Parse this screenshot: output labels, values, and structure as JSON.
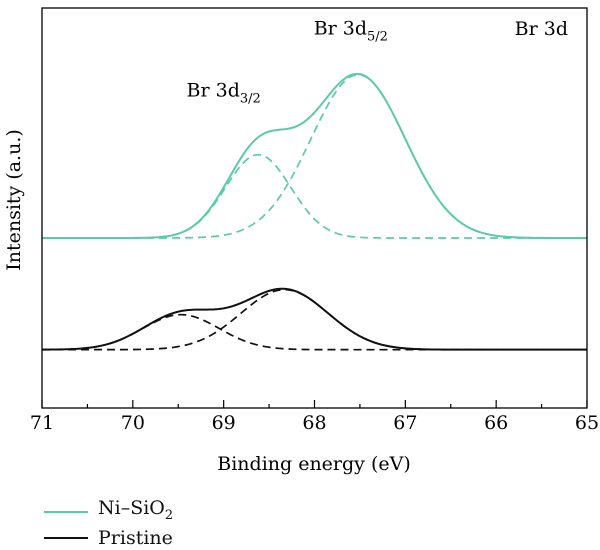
{
  "chart_data": {
    "type": "line",
    "title": "Br 3d",
    "xlabel": "Binding energy (eV)",
    "ylabel": "Intensity (a.u.)",
    "xlim": [
      71,
      65
    ],
    "x_reversed": true,
    "xticks": [
      "71",
      "70",
      "69",
      "68",
      "67",
      "66",
      "65"
    ],
    "yticks_visible": false,
    "grid": false,
    "legend_position": "below-left",
    "annotations": [
      {
        "label": "Br 3d",
        "sub": "3/2",
        "x": 69.0,
        "y": 1.62
      },
      {
        "label": "Br 3d",
        "sub": "5/2",
        "x": 67.6,
        "y": 1.99
      }
    ],
    "series": [
      {
        "name": "Ni–SiO",
        "name_sub": "2",
        "color": "#5ccaaa",
        "style": "solid",
        "role": "envelope",
        "baseline": 0.77,
        "peaks": [
          {
            "center": 68.62,
            "height": 0.5,
            "sigma": 0.36
          },
          {
            "center": 67.52,
            "height": 0.98,
            "sigma": 0.52
          }
        ],
        "x": [
          71.0,
          70.5,
          70.0,
          69.5,
          69.25,
          69.0,
          68.75,
          68.5,
          68.25,
          68.0,
          67.75,
          67.5,
          67.25,
          67.0,
          66.75,
          66.5,
          66.25,
          66.0,
          65.5,
          65.0
        ],
        "values": [
          0.77,
          0.77,
          0.78,
          0.84,
          0.98,
          1.2,
          1.36,
          1.42,
          1.48,
          1.62,
          1.72,
          1.73,
          1.58,
          1.32,
          1.05,
          0.88,
          0.8,
          0.78,
          0.77,
          0.77
        ]
      },
      {
        "name": "",
        "color": "#5ccaaa",
        "style": "dashed",
        "role": "component",
        "baseline": 0.77,
        "peaks": [
          {
            "center": 68.62,
            "height": 0.5,
            "sigma": 0.36
          }
        ]
      },
      {
        "name": "",
        "color": "#5ccaaa",
        "style": "dashed",
        "role": "component",
        "baseline": 0.77,
        "peaks": [
          {
            "center": 67.52,
            "height": 0.98,
            "sigma": 0.52
          }
        ]
      },
      {
        "name": "Pristine",
        "color": "#111111",
        "style": "solid",
        "role": "envelope",
        "baseline": 0.1,
        "peaks": [
          {
            "center": 69.47,
            "height": 0.21,
            "sigma": 0.42
          },
          {
            "center": 68.33,
            "height": 0.36,
            "sigma": 0.48
          }
        ],
        "x": [
          71.0,
          70.5,
          70.0,
          69.75,
          69.5,
          69.25,
          69.0,
          68.75,
          68.5,
          68.25,
          68.0,
          67.75,
          67.5,
          67.25,
          67.0,
          66.5,
          66.0,
          65.5,
          65.0
        ],
        "values": [
          0.1,
          0.11,
          0.17,
          0.24,
          0.31,
          0.35,
          0.38,
          0.41,
          0.45,
          0.46,
          0.43,
          0.34,
          0.24,
          0.16,
          0.12,
          0.1,
          0.1,
          0.1,
          0.1
        ]
      },
      {
        "name": "",
        "color": "#111111",
        "style": "dashed",
        "role": "component",
        "baseline": 0.1,
        "peaks": [
          {
            "center": 69.47,
            "height": 0.21,
            "sigma": 0.42
          }
        ]
      },
      {
        "name": "",
        "color": "#111111",
        "style": "dashed",
        "role": "component",
        "baseline": 0.1,
        "peaks": [
          {
            "center": 68.33,
            "height": 0.36,
            "sigma": 0.48
          }
        ]
      }
    ]
  }
}
